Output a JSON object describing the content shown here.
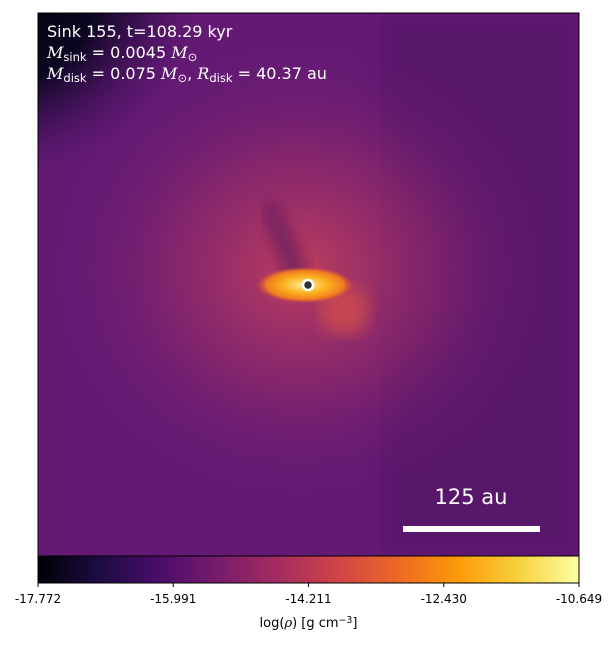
{
  "chart_data": {
    "type": "image",
    "annotations": [
      {
        "segments": [
          {
            "text": "Sink 155, t=108.29 kyr"
          }
        ]
      },
      {
        "segments": [
          {
            "text": "M",
            "italic": true
          },
          {
            "text": "sink",
            "sub": true
          },
          {
            "text": " = 0.0045 "
          },
          {
            "text": "M",
            "italic": true
          },
          {
            "text": "⊙",
            "sub": true
          }
        ]
      },
      {
        "segments": [
          {
            "text": "M",
            "italic": true
          },
          {
            "text": "disk",
            "sub": true
          },
          {
            "text": " = 0.075 "
          },
          {
            "text": "M",
            "italic": true
          },
          {
            "text": "⊙",
            "sub": true
          },
          {
            "text": ", "
          },
          {
            "text": "R",
            "italic": true
          },
          {
            "text": "disk",
            "sub": true
          },
          {
            "text": " = 40.37 au"
          }
        ]
      }
    ],
    "scale_bar_label": "125 au",
    "colorbar": {
      "label": [
        {
          "text": "log("
        },
        {
          "text": "ρ",
          "italic": true
        },
        {
          "text": ") [g cm"
        },
        {
          "text": "−3",
          "sup": true
        },
        {
          "text": "]"
        }
      ],
      "clim": [
        -17.772,
        -10.649
      ],
      "ticks": [
        -17.772,
        -15.991,
        -14.211,
        {
          "value": -12.43,
          "label": "-12.430"
        },
        -10.649
      ],
      "colors": [
        "#000004",
        "#1b0c41",
        "#4a0c6b",
        "#781c6d",
        "#a52c60",
        "#cf4446",
        "#ed6925",
        "#fb9b06",
        "#f7d13d",
        "#fcffa4"
      ]
    }
  }
}
